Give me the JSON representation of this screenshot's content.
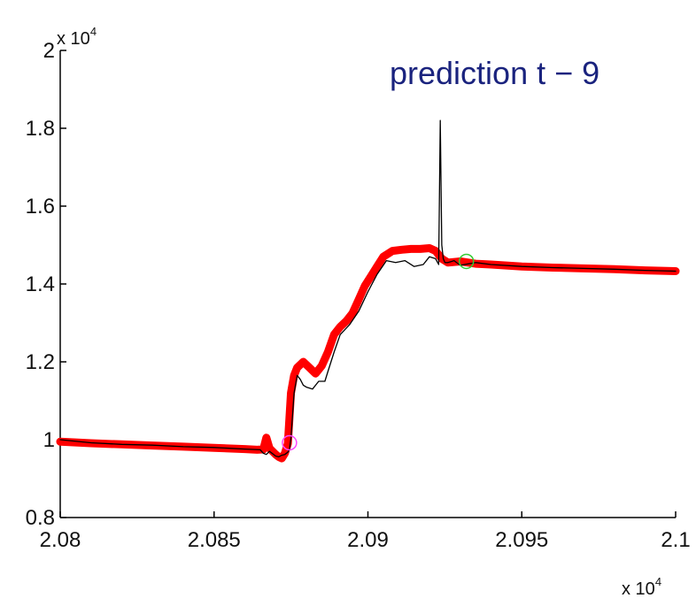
{
  "chart_data": {
    "type": "line",
    "title": "prediction t − 9",
    "xlabel": "",
    "ylabel": "",
    "x_exponent_label": "x 10",
    "x_exponent_power": "4",
    "y_exponent_label": "x 10",
    "y_exponent_power": "4",
    "xlim": [
      20800,
      21000
    ],
    "ylim": [
      8000,
      20000
    ],
    "x_ticks": [
      20800,
      20850,
      20900,
      20950,
      21000
    ],
    "x_tick_labels": [
      "2.08",
      "2.085",
      "2.09",
      "2.095",
      "2.1"
    ],
    "y_ticks": [
      8000,
      10000,
      12000,
      14000,
      16000,
      18000,
      20000
    ],
    "y_tick_labels": [
      "0.8",
      "1",
      "1.2",
      "1.4",
      "1.6",
      "1.8",
      "2"
    ],
    "grid": false,
    "colors": {
      "observed": "#000000",
      "prediction": "#ff0000",
      "start_marker": "#ff44ff",
      "end_marker": "#33cc33",
      "title": "#1a237e"
    },
    "series": [
      {
        "role": "observed",
        "x": [
          20800,
          20810,
          20820,
          20830,
          20840,
          20850,
          20860,
          20865,
          20866,
          20867,
          20868,
          20869,
          20870,
          20871,
          20872,
          20873,
          20874,
          20874.5,
          20875,
          20876,
          20877,
          20878,
          20879,
          20880,
          20882,
          20884,
          20886,
          20887,
          20889,
          20891,
          20894,
          20897,
          20900,
          20903,
          20906,
          20909,
          20912,
          20915,
          20918,
          20920,
          20922,
          20923,
          20923.5,
          20924,
          20924.5,
          20925,
          20926,
          20928,
          20930,
          20935,
          20940,
          20950,
          20960,
          20970,
          20980,
          20990,
          21000
        ],
        "y": [
          10000,
          9920,
          9880,
          9860,
          9820,
          9800,
          9760,
          9740,
          9650,
          9620,
          9700,
          9640,
          9580,
          9560,
          9600,
          9620,
          9680,
          9750,
          10050,
          11200,
          11650,
          11550,
          11400,
          11350,
          11300,
          11500,
          11500,
          11750,
          12250,
          12700,
          12950,
          13300,
          13800,
          14250,
          14600,
          14550,
          14600,
          14450,
          14500,
          14700,
          14650,
          14500,
          18200,
          15000,
          14650,
          14550,
          14550,
          14600,
          14480,
          14550,
          14500,
          14450,
          14420,
          14400,
          14380,
          14350,
          14330
        ]
      },
      {
        "role": "prediction",
        "x": [
          20800,
          20810,
          20820,
          20830,
          20840,
          20850,
          20860,
          20864,
          20866,
          20867,
          20868,
          20869,
          20870,
          20871,
          20872,
          20873,
          20874,
          20875,
          20876,
          20877,
          20879,
          20881,
          20883,
          20885,
          20887,
          20889,
          20891,
          20893,
          20895,
          20897,
          20899,
          20901,
          20903,
          20905,
          20908,
          20911,
          20914,
          20917,
          20920,
          20922,
          20924,
          20926,
          20930,
          20935,
          20940,
          20950,
          20960,
          20970,
          20980,
          20990,
          21000
        ],
        "y": [
          9950,
          9910,
          9880,
          9850,
          9820,
          9790,
          9760,
          9740,
          9750,
          10050,
          9780,
          9700,
          9620,
          9560,
          9520,
          9650,
          9900,
          11200,
          11650,
          11850,
          12000,
          11850,
          11700,
          11900,
          12250,
          12700,
          12900,
          13050,
          13250,
          13600,
          13950,
          14200,
          14450,
          14700,
          14850,
          14880,
          14900,
          14900,
          14920,
          14850,
          14650,
          14550,
          14580,
          14520,
          14500,
          14450,
          14420,
          14400,
          14380,
          14350,
          14330
        ]
      }
    ],
    "markers": [
      {
        "role": "start_marker",
        "x": 20874.5,
        "y": 9920
      },
      {
        "role": "end_marker",
        "x": 20932,
        "y": 14580
      }
    ]
  }
}
